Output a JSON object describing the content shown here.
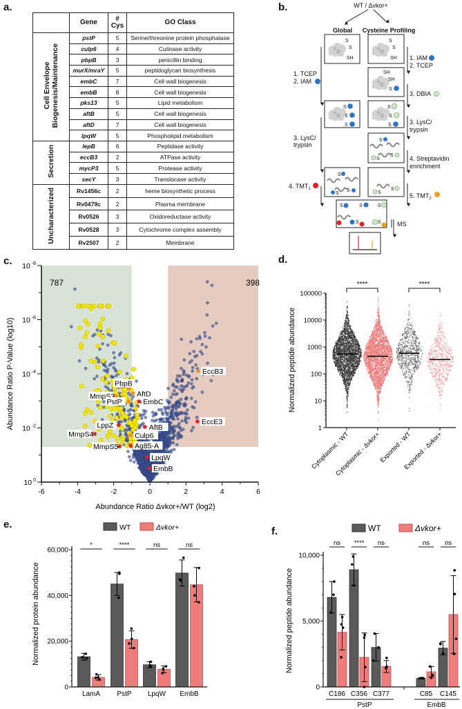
{
  "panels": {
    "a": "a.",
    "b": "b.",
    "c": "c.",
    "d": "d.",
    "e": "e.",
    "f": "f."
  },
  "table": {
    "headers": {
      "category": "",
      "gene": "Gene",
      "cys": [
        "#",
        "Cys"
      ],
      "go": "GO Class"
    },
    "groups": [
      {
        "name": [
          "Cell Envelope",
          "Biogenesis/Maintenance"
        ],
        "italic": true,
        "rows": [
          {
            "gene": "pstP",
            "cys": "5",
            "go": "Serine/threonine protein phosphatase"
          },
          {
            "gene": "culp6",
            "cys": "4",
            "go": "Cutinase activity"
          },
          {
            "gene": "pbpB",
            "cys": "3",
            "go": "penicillin binding"
          },
          {
            "gene": "murX/mraY",
            "cys": "5",
            "go": "peptidoglycan biosynthesis"
          },
          {
            "gene": "embC",
            "cys": "7",
            "go": "Cell wall biogenesis"
          },
          {
            "gene": "embB",
            "cys": "8",
            "go": "Cell wall biogenesis"
          },
          {
            "gene": "pks13",
            "cys": "5",
            "go": "Lipid metabolism"
          },
          {
            "gene": "aftB",
            "cys": "5",
            "go": "Cell wall biogenesis"
          },
          {
            "gene": "aftD",
            "cys": "7",
            "go": "Cell wall biogenesis"
          },
          {
            "gene": "lpqW",
            "cys": "5",
            "go": "Phospholipid metabolism"
          }
        ]
      },
      {
        "name": [
          "Secretion"
        ],
        "italic": true,
        "rows": [
          {
            "gene": "lepB",
            "cys": "6",
            "go": "Peptidase activity"
          },
          {
            "gene": "eccB3",
            "cys": "2",
            "go": "ATPase activity"
          },
          {
            "gene": "mycP3",
            "cys": "5",
            "go": "Protease activity"
          },
          {
            "gene": "secY",
            "cys": "3",
            "go": "Translocase activity"
          }
        ]
      },
      {
        "name": [
          "Uncharacterized"
        ],
        "italic": false,
        "rows": [
          {
            "gene": "Rv1456c",
            "cys": "2",
            "go": "heme biosynthetic process"
          },
          {
            "gene": "Rv0479c",
            "cys": "2",
            "go": "Plasma membrane"
          },
          {
            "gene": "Rv0526",
            "cys": "3",
            "go": "Oxidoreductase activity"
          },
          {
            "gene": "Rv0528",
            "cys": "3",
            "go": "Cytochrome complex assembly"
          },
          {
            "gene": "Rv2507",
            "cys": "2",
            "go": "Membrane"
          }
        ]
      }
    ]
  },
  "diagram": {
    "top": "WT / Δvkor+",
    "global": "Global",
    "cys": "Cysteine Profiling",
    "g_step1": "1. TCEP",
    "g_step2": "2. IAM",
    "g_step3a": "3. LysC/",
    "g_step3b": "trypsin",
    "g_step4": "4. TMT",
    "g_step4_sub": "1",
    "c_step1": "1. IAM",
    "c_step2": "2. TCEP",
    "c_step3": "3. DBIA",
    "c_step3a": "3. LysC/",
    "c_step3b": "trypsin",
    "c_step4a": "4. Streptavidin",
    "c_step4b": "enrichment",
    "c_step5": "5. TMT",
    "c_step5_sub": "2",
    "ms": "MS",
    "s": "S",
    "sh": "SH",
    "colors": {
      "iam": "#2f73c4",
      "dbia": "#cfe6c9",
      "tmt1": "#e02525",
      "tmt2": "#f0a020"
    }
  },
  "chart_data": [
    {
      "id": "volcano",
      "type": "scatter",
      "xlabel": "Abundance Ratio Δvkor+/WT (log2)",
      "ylabel": "Abundance Ratio P-Value (log10)",
      "xlim": [
        -6,
        6
      ],
      "x_ticks": [
        -6,
        -4,
        -2,
        0,
        2,
        4,
        6
      ],
      "ylim_neglog10": [
        0,
        8
      ],
      "y_tick_base": "10",
      "y_tick_exponents": [
        -8,
        -6,
        -4,
        -2,
        0
      ],
      "regions": [
        {
          "name": "down",
          "x": [
            -6,
            -1
          ],
          "p_threshold_neglog10": 1.3,
          "count": "787",
          "color": "#d9e3d5"
        },
        {
          "name": "up",
          "x": [
            1,
            6
          ],
          "p_threshold_neglog10": 1.3,
          "count": "398",
          "color": "#e6cbc0"
        }
      ],
      "colors": {
        "background": "#3d5494",
        "highlight": "#f5e600",
        "labeled_orange": "#f0902a",
        "labeled_red": "#e0202a"
      },
      "labeled_points": [
        {
          "label": "EccB3",
          "x": 2.67,
          "y": 4.1,
          "color": "orange"
        },
        {
          "label": "PbpB",
          "x": -1.15,
          "y": 3.45,
          "color": "orange"
        },
        {
          "label": "AftD",
          "x": -0.95,
          "y": 3.28,
          "color": "orange"
        },
        {
          "label": "MmpS3",
          "x": -1.87,
          "y": 3.18,
          "color": "orange"
        },
        {
          "label": "PstP",
          "x": -1.18,
          "y": 2.98,
          "color": "orange"
        },
        {
          "label": "EmbC",
          "x": -0.6,
          "y": 2.98,
          "color": "red"
        },
        {
          "label": "EccE3",
          "x": 2.63,
          "y": 2.24,
          "color": "red"
        },
        {
          "label": "LppZ",
          "x": -1.72,
          "y": 2.11,
          "color": "red"
        },
        {
          "label": "AftB",
          "x": -0.27,
          "y": 2.04,
          "color": "red"
        },
        {
          "label": "MmpS4",
          "x": -3.05,
          "y": 1.78,
          "color": "red"
        },
        {
          "label": "Culp6",
          "x": -1.07,
          "y": 1.73,
          "color": "orange"
        },
        {
          "label": "MmpS5",
          "x": -1.68,
          "y": 1.32,
          "color": "red"
        },
        {
          "label": "Ag85-A",
          "x": -1.07,
          "y": 1.35,
          "color": "red"
        },
        {
          "label": "LpqW",
          "x": -0.15,
          "y": 0.92,
          "color": "red"
        },
        {
          "label": "EmbB",
          "x": -0.04,
          "y": 0.51,
          "color": "red"
        }
      ]
    },
    {
      "id": "strip",
      "type": "scatter",
      "ylabel": "Normalized peptide abundance",
      "yscale": "log",
      "ylim": [
        1,
        100000
      ],
      "y_ticks": [
        "1",
        "10",
        "100",
        "1000",
        "10000",
        "100000"
      ],
      "categories": [
        "Cytoplasmic - WT",
        "Cytoplasmic - Δvkor+",
        "Exported - WT",
        "Exported - Δvkor+"
      ],
      "medians": [
        550,
        450,
        580,
        340
      ],
      "log10_sd": [
        0.55,
        0.6,
        0.55,
        0.55
      ],
      "n_points": [
        2600,
        2600,
        700,
        700
      ],
      "colors": [
        "#3a3a3a",
        "#f07878",
        "#555555",
        "#f29a9a"
      ],
      "significance": [
        {
          "between": [
            0,
            1
          ],
          "label": "****"
        },
        {
          "between": [
            2,
            3
          ],
          "label": "****"
        }
      ]
    },
    {
      "id": "protein_bars",
      "type": "bar",
      "ylabel": "Normalized protein abundance",
      "ylim": [
        0,
        60000
      ],
      "y_ticks": [
        0,
        20000,
        40000,
        60000
      ],
      "y_tick_labels": [
        "0",
        "20,000",
        "40,000",
        "60,000"
      ],
      "legend": [
        "WT",
        "Δvkor+"
      ],
      "legend_position": "top",
      "colors": [
        "#5a5a5a",
        "#f07b7b"
      ],
      "categories": [
        "LamA",
        "PstP",
        "LpqW",
        "EmbB"
      ],
      "series": [
        {
          "name": "WT",
          "values": [
            13200,
            45000,
            9700,
            49800
          ],
          "errors": [
            1500,
            5000,
            1300,
            5700
          ],
          "points": [
            [
              14500,
              12500,
              13000
            ],
            [
              50000,
              49500,
              39000
            ],
            [
              11000,
              9000,
              9500
            ],
            [
              56500,
              47000,
              46500
            ]
          ]
        },
        {
          "name": "Δvkor+",
          "values": [
            4200,
            20700,
            7700,
            44700
          ],
          "errors": [
            1200,
            3800,
            1500,
            7500
          ],
          "points": [
            [
              5500,
              4000,
              3200,
              4200
            ],
            [
              25500,
              21000,
              17000,
              19000
            ],
            [
              9000,
              7500,
              6000,
              8000
            ],
            [
              52000,
              40000,
              44000,
              37000
            ]
          ]
        }
      ],
      "significance": [
        "*",
        "****",
        "ns",
        "ns"
      ]
    },
    {
      "id": "peptide_bars",
      "type": "bar",
      "ylabel": "Normalized peptide abundance",
      "ylim": [
        0,
        10000
      ],
      "y_ticks": [
        0,
        5000,
        10000
      ],
      "y_tick_labels": [
        "0",
        "5,000",
        "10,000"
      ],
      "legend": [
        "WT",
        "Δvkor+"
      ],
      "legend_position": "top",
      "colors": [
        "#5a5a5a",
        "#f07b7b"
      ],
      "categories": [
        "C186",
        "C356",
        "C377",
        "C85",
        "C145"
      ],
      "groups": [
        {
          "name": "PstP",
          "members": [
            0,
            1,
            2
          ]
        },
        {
          "name": "EmbB",
          "members": [
            3,
            4
          ]
        }
      ],
      "series": [
        {
          "name": "WT",
          "values": [
            6800,
            8900,
            3000,
            650,
            2950
          ],
          "errors": [
            1200,
            1200,
            1050,
            50,
            500
          ],
          "points": [
            [
              8000,
              7000,
              5650
            ],
            [
              9900,
              9300,
              7700
            ],
            [
              4050,
              3000,
              2000
            ],
            [
              680,
              660,
              650
            ],
            [
              3300,
              3250,
              2550
            ]
          ]
        },
        {
          "name": "Δvkor+",
          "values": [
            4150,
            2250,
            1550,
            1150,
            5500
          ],
          "errors": [
            1350,
            1850,
            450,
            400,
            2950
          ],
          "points": [
            [
              5300,
              4750,
              4500,
              2250
            ],
            [
              3950,
              3750,
              1500,
              0
            ],
            [
              2200,
              1550,
              1400,
              1450
            ],
            [
              1550,
              1550,
              900,
              700
            ],
            [
              8850,
              7050,
              3650,
              2500
            ]
          ]
        }
      ],
      "significance": [
        "ns",
        "****",
        "ns",
        "ns",
        "ns"
      ]
    }
  ]
}
